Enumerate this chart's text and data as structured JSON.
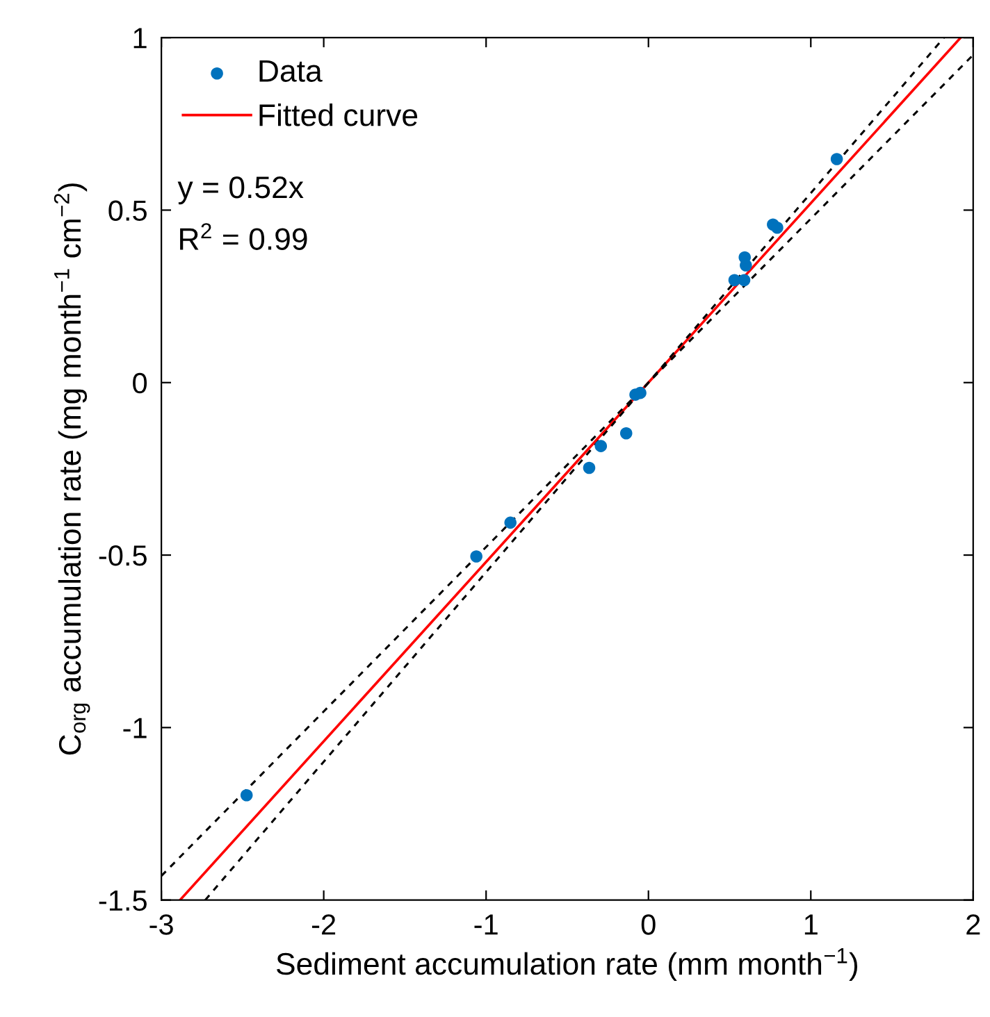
{
  "chart_data": {
    "type": "scatter",
    "xlabel": "Sediment accumulation rate (mm month$^{−1}$)",
    "ylabel": "C$_{org}$ accumulation rate (mg month$^{−1}$ cm$^{−2}$)",
    "xlim": [
      -3,
      2
    ],
    "ylim": [
      -1.5,
      1
    ],
    "xticks": [
      -3,
      -2,
      -1,
      0,
      1,
      2
    ],
    "yticks": [
      -1.5,
      -1,
      -0.5,
      0,
      0.5,
      1
    ],
    "grid": false,
    "legend": "top left",
    "annotations": [
      "y = 0.52x",
      "R$^{2}$ = 0.99"
    ],
    "series": [
      {
        "name": "Data",
        "marker": "circle",
        "color": "#0072bd",
        "x": [
          -2.475,
          -1.06,
          -0.85,
          -0.365,
          -0.293,
          -0.137,
          -0.08,
          -0.05,
          0.53,
          0.59,
          0.6,
          0.593,
          0.767,
          0.793,
          1.16
        ],
        "values": [
          -1.196,
          -0.504,
          -0.406,
          -0.247,
          -0.184,
          -0.147,
          -0.035,
          -0.03,
          0.297,
          0.297,
          0.34,
          0.363,
          0.458,
          0.449,
          0.648
        ]
      },
      {
        "name": "Fitted curve",
        "type": "line",
        "line_style": "solid",
        "color": "#ff0000",
        "x": [
          -2.885,
          1.923
        ],
        "values": [
          -1.5,
          1
        ]
      },
      {
        "type": "line",
        "line_style": "dashed",
        "color": "#000000",
        "x": [
          -3,
          0,
          1.82
        ],
        "values": [
          -1.43,
          0,
          1
        ]
      },
      {
        "type": "line",
        "line_style": "dashed",
        "color": "#000000",
        "x": [
          -2.73,
          0,
          2
        ],
        "values": [
          -1.5,
          0,
          0.95
        ]
      }
    ]
  }
}
